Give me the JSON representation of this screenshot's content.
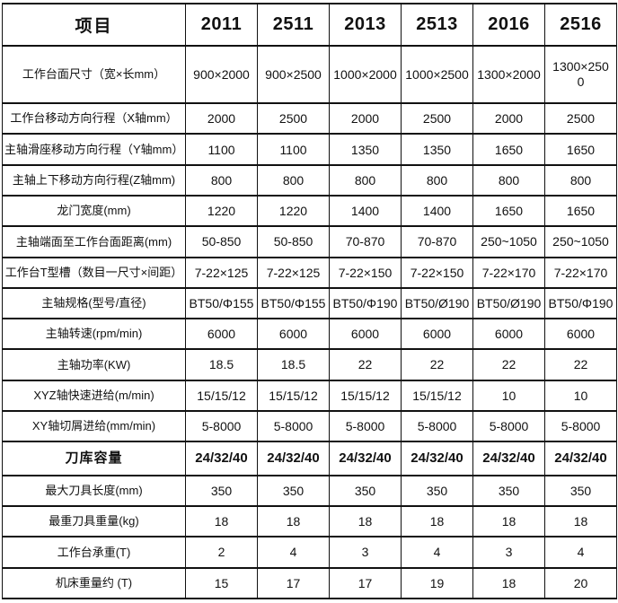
{
  "table": {
    "header_label": "项目",
    "columns": [
      "2011",
      "2511",
      "2013",
      "2513",
      "2016",
      "2516"
    ],
    "rows": [
      {
        "label": "工作台面尺寸（宽×长mm）",
        "values": [
          "900×2000",
          "900×2500",
          "1000×2000",
          "1000×2500",
          "1300×2000",
          "1300×2500"
        ],
        "bold": false
      },
      {
        "label": "工作台移动方向行程（X轴mm）",
        "values": [
          "2000",
          "2500",
          "2000",
          "2500",
          "2000",
          "2500"
        ],
        "bold": false
      },
      {
        "label": "主轴滑座移动方向行程（Y轴mm）",
        "values": [
          "1100",
          "1100",
          "1350",
          "1350",
          "1650",
          "1650"
        ],
        "bold": false
      },
      {
        "label": "主轴上下移动方向行程(Z轴mm)",
        "values": [
          "800",
          "800",
          "800",
          "800",
          "800",
          "800"
        ],
        "bold": false
      },
      {
        "label": "龙门宽度(mm)",
        "values": [
          "1220",
          "1220",
          "1400",
          "1400",
          "1650",
          "1650"
        ],
        "bold": false
      },
      {
        "label": "主轴端面至工作台面距离(mm)",
        "values": [
          "50-850",
          "50-850",
          "70-870",
          "70-870",
          "250~1050",
          "250~1050"
        ],
        "bold": false
      },
      {
        "label": "工作台T型槽（数目一尺寸×间距）",
        "values": [
          "7-22×125",
          "7-22×125",
          "7-22×150",
          "7-22×150",
          "7-22×170",
          "7-22×170"
        ],
        "bold": false
      },
      {
        "label": "主轴规格(型号/直径)",
        "values": [
          "BT50/Φ155",
          "BT50/Φ155",
          "BT50/Φ190",
          "BT50/Ø190",
          "BT50/Ø190",
          "BT50/Φ190"
        ],
        "bold": false
      },
      {
        "label": "主轴转速(rpm/min)",
        "values": [
          "6000",
          "6000",
          "6000",
          "6000",
          "6000",
          "6000"
        ],
        "bold": false
      },
      {
        "label": "主轴功率(KW)",
        "values": [
          "18.5",
          "18.5",
          "22",
          "22",
          "22",
          "22"
        ],
        "bold": false
      },
      {
        "label": "XYZ轴快速进给(m/min)",
        "values": [
          "15/15/12",
          "15/15/12",
          "15/15/12",
          "15/15/12",
          "10",
          "10"
        ],
        "bold": false
      },
      {
        "label": "XY轴切屑进给(mm/min)",
        "values": [
          "5-8000",
          "5-8000",
          "5-8000",
          "5-8000",
          "5-8000",
          "5-8000"
        ],
        "bold": false
      },
      {
        "label": "刀库容量",
        "values": [
          "24/32/40",
          "24/32/40",
          "24/32/40",
          "24/32/40",
          "24/32/40",
          "24/32/40"
        ],
        "bold": true
      },
      {
        "label": "最大刀具长度(mm)",
        "values": [
          "350",
          "350",
          "350",
          "350",
          "350",
          "350"
        ],
        "bold": false
      },
      {
        "label": "最重刀具重量(kg)",
        "values": [
          "18",
          "18",
          "18",
          "18",
          "18",
          "18"
        ],
        "bold": false
      },
      {
        "label": "工作台承重(T)",
        "values": [
          "2",
          "4",
          "3",
          "4",
          "3",
          "4"
        ],
        "bold": false
      },
      {
        "label": "机床重量约 (T)",
        "values": [
          "15",
          "17",
          "17",
          "19",
          "18",
          "20"
        ],
        "bold": false
      }
    ]
  },
  "colors": {
    "border": "#111111",
    "text": "#111111",
    "background": "#ffffff"
  }
}
